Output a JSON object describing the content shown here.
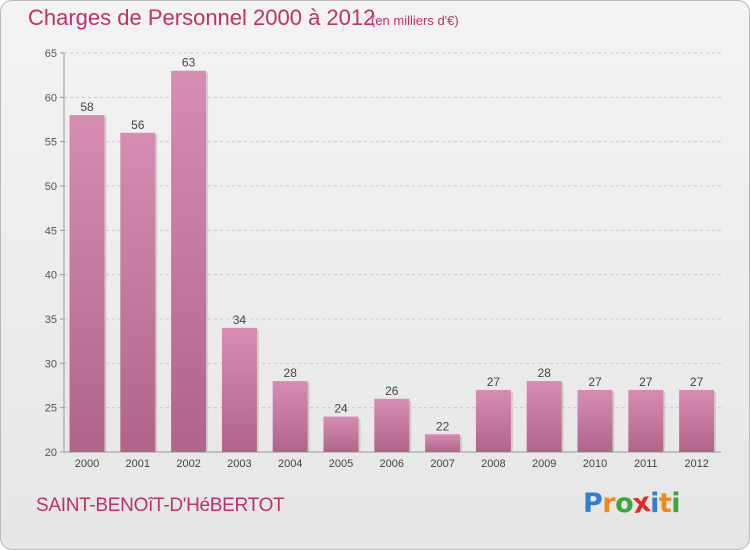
{
  "chart_data": {
    "type": "bar",
    "title": "Charges de Personnel 2000 à 2012",
    "subtitle": "(en milliers d'€)",
    "categories": [
      "2000",
      "2001",
      "2002",
      "2003",
      "2004",
      "2005",
      "2006",
      "2007",
      "2008",
      "2009",
      "2010",
      "2011",
      "2012"
    ],
    "values": [
      58,
      56,
      63,
      34,
      28,
      24,
      26,
      22,
      27,
      28,
      27,
      27,
      27
    ],
    "data_labels": [
      "58",
      "56",
      "63",
      "34",
      "28",
      "24",
      "26",
      "22",
      "27",
      "28",
      "27",
      "27",
      "27"
    ],
    "ylim": [
      20,
      65
    ],
    "yticks": [
      20,
      25,
      30,
      35,
      40,
      45,
      50,
      55,
      60,
      65
    ],
    "ytick_labels": [
      "20",
      "25",
      "30",
      "35",
      "40",
      "45",
      "50",
      "55",
      "60",
      "65"
    ],
    "grid": true,
    "bar_color": "#d78db3",
    "bar_color_dark": "#b0648b"
  },
  "footer": {
    "commune": "SAINT-BENOîT-D'HéBERTOT",
    "logo_letters": [
      "P",
      "r",
      "o",
      "x",
      "i",
      "t",
      "i"
    ],
    "logo_colors": [
      "#2f7fd0",
      "#f08a1c",
      "#3aa935",
      "#e02b2b",
      "#2f7fd0",
      "#f08a1c",
      "#3aa935"
    ]
  }
}
